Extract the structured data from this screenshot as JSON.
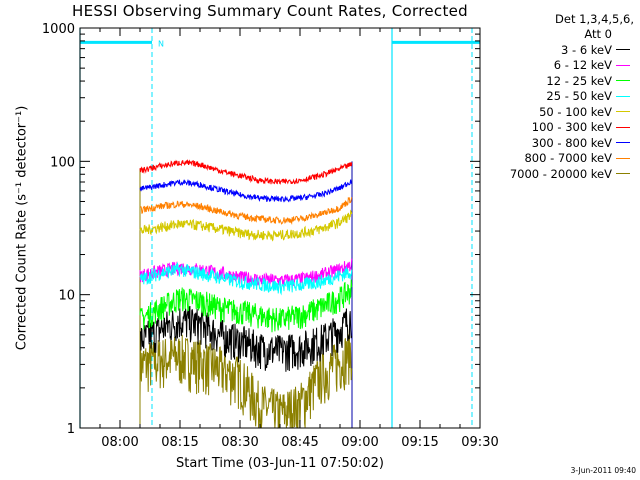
{
  "title": "HESSI Observing Summary Count Rates, Corrected",
  "chart_data": {
    "type": "line",
    "title": "HESSI Observing Summary Count Rates, Corrected",
    "xlabel": "Start Time (03-Jun-11 07:50:02)",
    "ylabel": "Corrected Count Rate (s⁻¹ detector⁻¹)",
    "x_range_minutes_after_0800": [
      -10,
      90
    ],
    "x_ticks": [
      "08:00",
      "08:15",
      "08:30",
      "08:45",
      "09:00",
      "09:15",
      "09:30"
    ],
    "y_scale": "log",
    "ylim": [
      1,
      1000
    ],
    "y_ticks": [
      "1",
      "10",
      "100",
      "1000"
    ],
    "legend_header": [
      "Det 1,3,4,5,6,",
      "Att 0"
    ],
    "legend_position": "right-outside",
    "data_interval_minutes": [
      5,
      60
    ],
    "series": [
      {
        "name": "3 - 6 keV",
        "color": "#000000",
        "x": [
          5,
          10,
          15,
          20,
          25,
          30,
          35,
          40,
          45,
          50,
          55,
          58
        ],
        "values": [
          4.5,
          5.5,
          6.5,
          6.0,
          5.0,
          4.5,
          4.0,
          3.8,
          4.0,
          4.5,
          5.5,
          7.0
        ]
      },
      {
        "name": "6 - 12 keV",
        "color": "#ff00ff",
        "x": [
          5,
          10,
          15,
          20,
          25,
          30,
          35,
          40,
          45,
          50,
          55,
          58
        ],
        "values": [
          14,
          15,
          16,
          15.5,
          14.5,
          13.5,
          13,
          12.8,
          13,
          14,
          15.5,
          17
        ]
      },
      {
        "name": "12 - 25 keV",
        "color": "#00ff00",
        "x": [
          5,
          10,
          15,
          20,
          25,
          30,
          35,
          40,
          45,
          50,
          55,
          58
        ],
        "values": [
          6.5,
          8.0,
          9.5,
          9.0,
          8.0,
          7.5,
          7.0,
          6.5,
          7.0,
          8.0,
          9.5,
          11.0
        ]
      },
      {
        "name": "25 - 50 keV",
        "color": "#00ffff",
        "x": [
          5,
          10,
          15,
          20,
          25,
          30,
          35,
          40,
          45,
          50,
          55,
          58
        ],
        "values": [
          13,
          14.5,
          15.5,
          14.5,
          13.5,
          12.5,
          12,
          11.5,
          11.8,
          12.5,
          14,
          15
        ]
      },
      {
        "name": "50 - 100 keV",
        "color": "#d4c800",
        "x": [
          5,
          10,
          15,
          20,
          25,
          30,
          35,
          40,
          45,
          50,
          55,
          58
        ],
        "values": [
          30,
          32,
          34,
          33,
          31,
          29,
          28,
          28,
          29,
          31,
          35,
          40
        ]
      },
      {
        "name": "100 - 300 keV",
        "color": "#ff0000",
        "x": [
          5,
          10,
          15,
          20,
          25,
          30,
          35,
          40,
          45,
          50,
          55,
          58
        ],
        "values": [
          85,
          92,
          98,
          95,
          85,
          78,
          72,
          70,
          72,
          78,
          88,
          95
        ]
      },
      {
        "name": "300 - 800 keV",
        "color": "#0000ff",
        "x": [
          5,
          10,
          15,
          20,
          25,
          30,
          35,
          40,
          45,
          50,
          55,
          58
        ],
        "values": [
          62,
          66,
          70,
          67,
          61,
          56,
          53,
          52,
          53,
          56,
          63,
          72
        ]
      },
      {
        "name": "800 - 7000 keV",
        "color": "#ff8000",
        "x": [
          5,
          10,
          15,
          20,
          25,
          30,
          35,
          40,
          45,
          50,
          55,
          58
        ],
        "values": [
          43,
          46,
          48,
          46,
          42,
          39,
          37,
          36,
          37,
          40,
          45,
          53
        ]
      },
      {
        "name": "7000 - 20000 keV",
        "color": "#8b8000",
        "x": [
          5,
          10,
          15,
          20,
          25,
          30,
          35,
          40,
          45,
          50,
          55,
          58
        ],
        "values": [
          3.0,
          3.3,
          3.5,
          3.2,
          2.8,
          2.4,
          1.5,
          1.3,
          1.5,
          2.5,
          3.2,
          4.0
        ]
      }
    ],
    "annotations": [
      {
        "text": "N",
        "x": 8
      }
    ],
    "night_bars": [
      {
        "x_start": -10,
        "x_end": 8,
        "y": 780
      },
      {
        "x_start": 68,
        "x_end": 90,
        "y": 780
      }
    ],
    "vlines_solid": [
      -10,
      68
    ],
    "vlines_dashed": [
      8,
      88
    ],
    "grid": false
  },
  "timestamp": "3-Jun-2011 09:40"
}
